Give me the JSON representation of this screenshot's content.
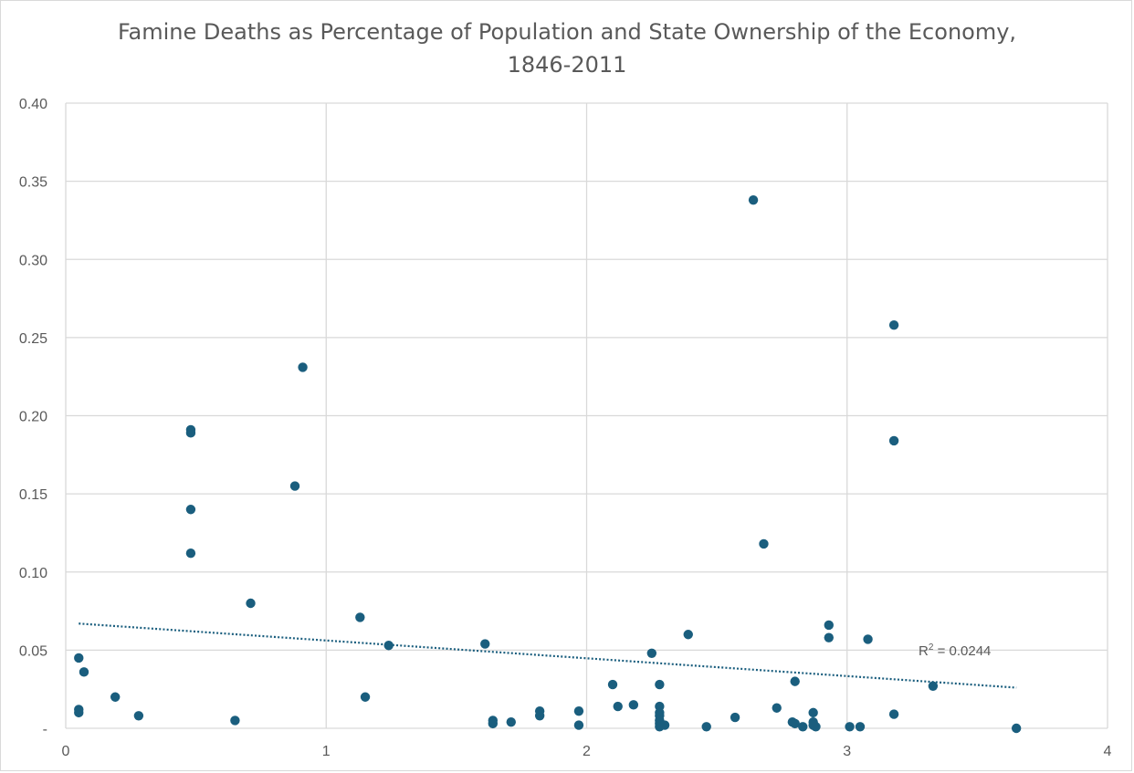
{
  "chart_data": {
    "type": "scatter",
    "title_lines": [
      "Famine Deaths as Percentage of Population and State Ownership of the Economy,",
      "1846-2011"
    ],
    "xlim": [
      0,
      4
    ],
    "ylim": [
      0,
      0.4
    ],
    "x_ticks": [
      0,
      1,
      2,
      3,
      4
    ],
    "y_ticks": [
      0,
      0.05,
      0.1,
      0.15,
      0.2,
      0.25,
      0.3,
      0.35,
      0.4
    ],
    "y_tick_labels": [
      "-",
      "0.05",
      "0.10",
      "0.15",
      "0.20",
      "0.25",
      "0.30",
      "0.35",
      "0.40"
    ],
    "grid": true,
    "colors": {
      "marker": "#1a5e7e",
      "trendline": "#1a5e7e",
      "grid": "#d9d9d9",
      "text": "#595959"
    },
    "trendline": {
      "type": "linear",
      "x": [
        0.05,
        3.65
      ],
      "y": [
        0.067,
        0.026
      ],
      "label_prefix": "R",
      "label_sup": "2",
      "label_suffix": " = 0.0244"
    },
    "points": [
      {
        "x": 0.05,
        "y": 0.045
      },
      {
        "x": 0.05,
        "y": 0.012
      },
      {
        "x": 0.05,
        "y": 0.01
      },
      {
        "x": 0.07,
        "y": 0.036
      },
      {
        "x": 0.19,
        "y": 0.02
      },
      {
        "x": 0.28,
        "y": 0.008
      },
      {
        "x": 0.48,
        "y": 0.191
      },
      {
        "x": 0.48,
        "y": 0.189
      },
      {
        "x": 0.48,
        "y": 0.14
      },
      {
        "x": 0.48,
        "y": 0.112
      },
      {
        "x": 0.65,
        "y": 0.005
      },
      {
        "x": 0.71,
        "y": 0.08
      },
      {
        "x": 0.88,
        "y": 0.155
      },
      {
        "x": 0.91,
        "y": 0.231
      },
      {
        "x": 1.13,
        "y": 0.071
      },
      {
        "x": 1.15,
        "y": 0.02
      },
      {
        "x": 1.24,
        "y": 0.053
      },
      {
        "x": 1.61,
        "y": 0.054
      },
      {
        "x": 1.64,
        "y": 0.005
      },
      {
        "x": 1.64,
        "y": 0.003
      },
      {
        "x": 1.71,
        "y": 0.004
      },
      {
        "x": 1.82,
        "y": 0.011
      },
      {
        "x": 1.82,
        "y": 0.008
      },
      {
        "x": 1.97,
        "y": 0.011
      },
      {
        "x": 1.97,
        "y": 0.002
      },
      {
        "x": 2.1,
        "y": 0.028
      },
      {
        "x": 2.12,
        "y": 0.014
      },
      {
        "x": 2.18,
        "y": 0.015
      },
      {
        "x": 2.25,
        "y": 0.048
      },
      {
        "x": 2.28,
        "y": 0.028
      },
      {
        "x": 2.28,
        "y": 0.014
      },
      {
        "x": 2.28,
        "y": 0.01
      },
      {
        "x": 2.28,
        "y": 0.008
      },
      {
        "x": 2.28,
        "y": 0.005
      },
      {
        "x": 2.28,
        "y": 0.003
      },
      {
        "x": 2.28,
        "y": 0.001
      },
      {
        "x": 2.3,
        "y": 0.002
      },
      {
        "x": 2.39,
        "y": 0.06
      },
      {
        "x": 2.46,
        "y": 0.001
      },
      {
        "x": 2.57,
        "y": 0.007
      },
      {
        "x": 2.64,
        "y": 0.338
      },
      {
        "x": 2.68,
        "y": 0.118
      },
      {
        "x": 2.73,
        "y": 0.013
      },
      {
        "x": 2.79,
        "y": 0.004
      },
      {
        "x": 2.8,
        "y": 0.03
      },
      {
        "x": 2.8,
        "y": 0.003
      },
      {
        "x": 2.83,
        "y": 0.001
      },
      {
        "x": 2.87,
        "y": 0.01
      },
      {
        "x": 2.87,
        "y": 0.004
      },
      {
        "x": 2.87,
        "y": 0.002
      },
      {
        "x": 2.88,
        "y": 0.001
      },
      {
        "x": 2.93,
        "y": 0.066
      },
      {
        "x": 2.93,
        "y": 0.058
      },
      {
        "x": 3.01,
        "y": 0.001
      },
      {
        "x": 3.05,
        "y": 0.001
      },
      {
        "x": 3.08,
        "y": 0.057
      },
      {
        "x": 3.18,
        "y": 0.258
      },
      {
        "x": 3.18,
        "y": 0.184
      },
      {
        "x": 3.18,
        "y": 0.009
      },
      {
        "x": 3.33,
        "y": 0.027
      },
      {
        "x": 3.65,
        "y": 0.0
      }
    ]
  }
}
